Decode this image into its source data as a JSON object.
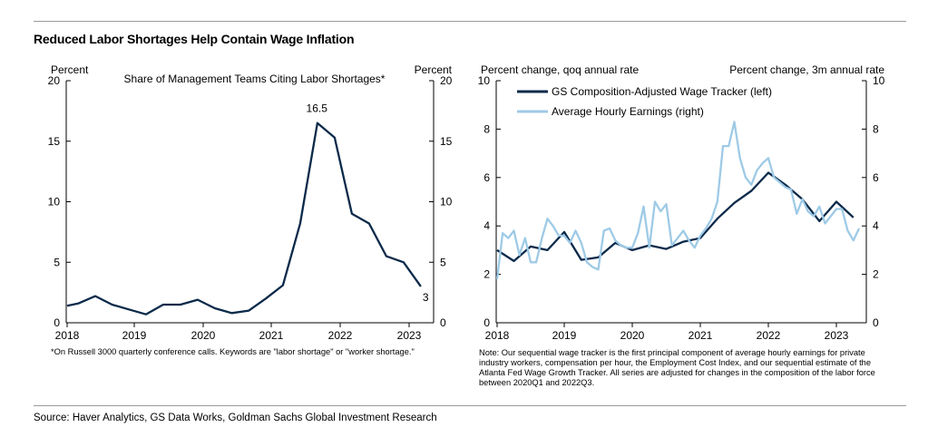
{
  "page": {
    "title": "Reduced Labor Shortages Help Contain Wage Inflation",
    "source": "Source: Haver Analytics, GS Data Works, Goldman Sachs Global Investment Research"
  },
  "chart_data": [
    {
      "type": "line",
      "title": "Share of Management Teams Citing Labor Shortages*",
      "ylabel_left": "Percent",
      "ylabel_right": "Percent",
      "ylim": [
        0,
        20
      ],
      "yticks": [
        0,
        5,
        10,
        15,
        20
      ],
      "xlim": [
        2018,
        2023.4
      ],
      "xticks": [
        "2018",
        "2019",
        "2020",
        "2021",
        "2022",
        "2023"
      ],
      "grid": false,
      "annotations": [
        {
          "text": "16.5",
          "x": 2021.7,
          "y": 16.5
        },
        {
          "text": "3",
          "x": 2023.2,
          "y": 3
        }
      ],
      "footnote": "*On Russell 3000 quarterly conference calls. Keywords are \"labor shortage\" or \"worker shortage.\"",
      "series": [
        {
          "color": "#0b2a4a",
          "x": [
            2018.0,
            2018.17,
            2018.42,
            2018.67,
            2018.92,
            2019.17,
            2019.42,
            2019.67,
            2019.92,
            2020.17,
            2020.42,
            2020.67,
            2020.92,
            2021.17,
            2021.42,
            2021.67,
            2021.92,
            2022.17,
            2022.42,
            2022.67,
            2022.92,
            2023.17
          ],
          "y": [
            1.4,
            1.6,
            2.2,
            1.5,
            1.1,
            0.7,
            1.5,
            1.5,
            1.9,
            1.2,
            0.8,
            1.0,
            2.0,
            3.1,
            8.2,
            16.5,
            15.3,
            9.0,
            8.2,
            5.5,
            5.0,
            3.0
          ]
        }
      ]
    },
    {
      "type": "line",
      "ylabel_left": "Percent change, qoq annual rate",
      "ylabel_right": "Percent change, 3m annual rate",
      "ylim": [
        0,
        10
      ],
      "yticks": [
        0,
        2,
        4,
        6,
        8,
        10
      ],
      "xlim": [
        2018,
        2023.4
      ],
      "xticks": [
        "2018",
        "2019",
        "2020",
        "2021",
        "2022",
        "2023"
      ],
      "grid": false,
      "legend_position": "top-left",
      "note": "Note: Our sequential wage tracker is the first principal component of average hourly earnings for private industry workers, compensation per hour, the Employment Cost Index, and our sequential estimate of the Atlanta Fed Wage Growth Tracker. All series are adjusted for changes in the composition of the labor force between 2020Q1 and 2022Q3.",
      "series": [
        {
          "name": "GS Composition-Adjusted Wage Tracker (left)",
          "color": "#0b2a4a",
          "axis": "left",
          "x": [
            2018.0,
            2018.25,
            2018.5,
            2018.75,
            2019.0,
            2019.25,
            2019.5,
            2019.75,
            2020.0,
            2020.25,
            2020.5,
            2020.75,
            2021.0,
            2021.25,
            2021.5,
            2021.75,
            2022.0,
            2022.25,
            2022.5,
            2022.75,
            2023.0,
            2023.25
          ],
          "y": [
            3.0,
            2.55,
            3.15,
            3.0,
            3.75,
            2.6,
            2.7,
            3.3,
            3.0,
            3.2,
            3.05,
            3.35,
            3.5,
            4.3,
            4.95,
            5.45,
            6.2,
            5.7,
            5.1,
            4.2,
            5.0,
            4.35
          ]
        },
        {
          "name": "Average Hourly Earnings (right)",
          "color": "#9ecae6",
          "axis": "right",
          "x": [
            2018.0,
            2018.083,
            2018.167,
            2018.25,
            2018.333,
            2018.417,
            2018.5,
            2018.583,
            2018.667,
            2018.75,
            2018.833,
            2018.917,
            2019.0,
            2019.083,
            2019.167,
            2019.25,
            2019.333,
            2019.417,
            2019.5,
            2019.583,
            2019.667,
            2019.75,
            2019.833,
            2019.917,
            2020.0,
            2020.083,
            2020.167,
            2020.25,
            2020.333,
            2020.417,
            2020.5,
            2020.583,
            2020.667,
            2020.75,
            2020.833,
            2020.917,
            2021.0,
            2021.083,
            2021.167,
            2021.25,
            2021.333,
            2021.417,
            2021.5,
            2021.583,
            2021.667,
            2021.75,
            2021.833,
            2021.917,
            2022.0,
            2022.083,
            2022.167,
            2022.25,
            2022.333,
            2022.417,
            2022.5,
            2022.583,
            2022.667,
            2022.75,
            2022.833,
            2022.917,
            2023.0,
            2023.083,
            2023.167,
            2023.25,
            2023.333
          ],
          "y": [
            1.8,
            3.7,
            3.5,
            3.8,
            2.8,
            3.5,
            2.5,
            2.5,
            3.5,
            4.3,
            4.0,
            3.6,
            3.6,
            3.3,
            3.8,
            3.3,
            2.5,
            2.3,
            2.2,
            3.8,
            3.9,
            3.4,
            3.2,
            3.1,
            3.1,
            3.7,
            4.8,
            3.1,
            5.0,
            4.6,
            4.9,
            3.2,
            3.5,
            3.8,
            3.4,
            3.1,
            3.6,
            3.9,
            4.3,
            5.0,
            7.3,
            7.3,
            8.3,
            6.8,
            6.0,
            5.7,
            6.3,
            6.6,
            6.8,
            6.0,
            5.8,
            5.6,
            5.5,
            4.5,
            5.1,
            4.6,
            4.4,
            4.8,
            4.1,
            4.4,
            4.7,
            4.7,
            3.8,
            3.4,
            3.9
          ]
        }
      ]
    }
  ]
}
